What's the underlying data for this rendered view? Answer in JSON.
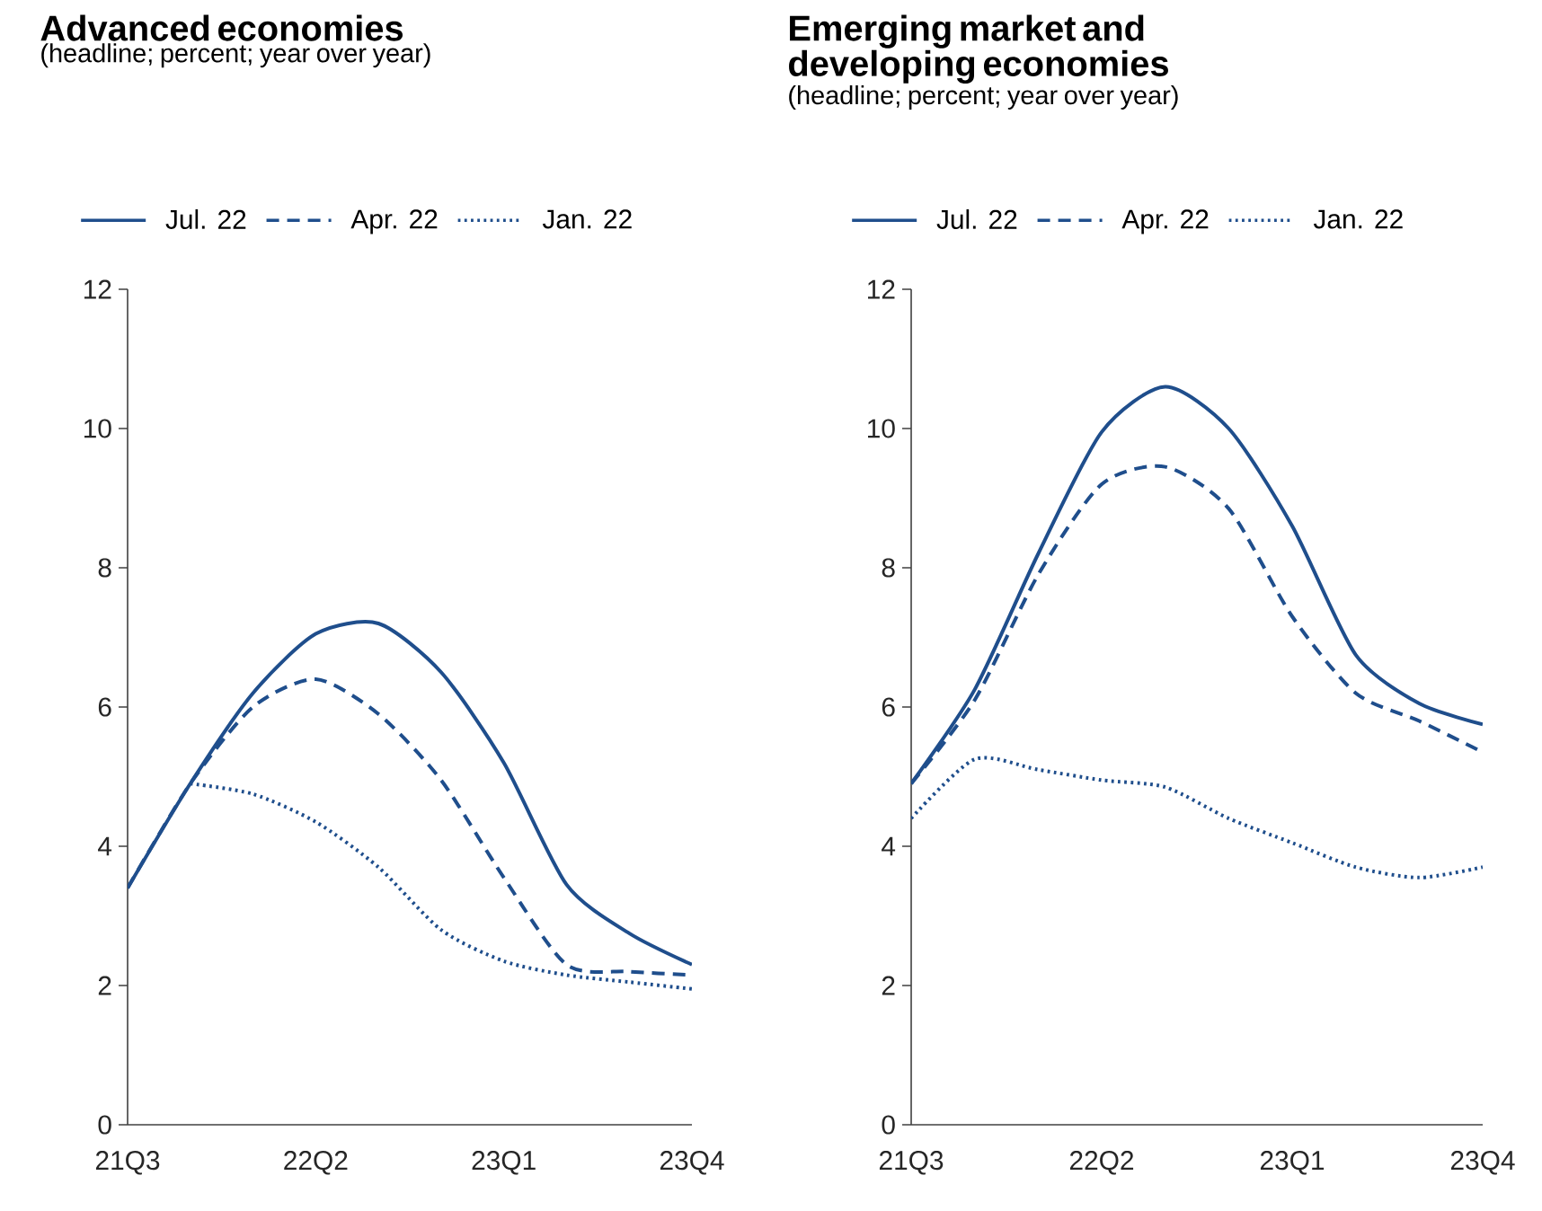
{
  "chart_data": [
    {
      "type": "line",
      "title": "Advanced economies",
      "subtitle": "(headline; percent; year over year)",
      "categories": [
        "21Q3",
        null,
        null,
        "22Q2",
        null,
        null,
        "23Q1",
        null,
        null,
        "23Q4"
      ],
      "ylim": [
        0,
        12
      ],
      "yticks": [
        0,
        2,
        4,
        6,
        8,
        10,
        12
      ],
      "legend": "top",
      "series": [
        {
          "name": "Jul. 22",
          "color": "#1f4e8c",
          "line_style": "solid",
          "values": [
            3.4,
            4.9,
            6.2,
            7.05,
            7.2,
            6.5,
            5.2,
            3.45,
            2.75,
            2.3
          ]
        },
        {
          "name": "Apr. 22",
          "color": "#1f4e8c",
          "line_style": "dashed",
          "values": [
            3.4,
            4.9,
            6.0,
            6.4,
            5.9,
            4.95,
            3.55,
            2.3,
            2.2,
            2.15
          ]
        },
        {
          "name": "Jan. 22",
          "color": "#1f4e8c",
          "line_style": "dotted",
          "values": [
            null,
            4.9,
            4.75,
            4.35,
            3.7,
            2.8,
            2.35,
            2.15,
            2.05,
            1.95
          ]
        }
      ]
    },
    {
      "type": "line",
      "title": "Emerging market and developing economies",
      "subtitle": "(headline; percent; year over year)",
      "categories": [
        "21Q3",
        null,
        null,
        "22Q2",
        null,
        null,
        "23Q1",
        null,
        null,
        "23Q4"
      ],
      "ylim": [
        0,
        12
      ],
      "yticks": [
        0,
        2,
        4,
        6,
        8,
        10,
        12
      ],
      "legend": "top",
      "series": [
        {
          "name": "Jul. 22",
          "color": "#1f4e8c",
          "line_style": "solid",
          "values": [
            4.9,
            6.25,
            8.2,
            9.95,
            10.6,
            10.0,
            8.6,
            6.75,
            6.05,
            5.75
          ]
        },
        {
          "name": "Apr. 22",
          "color": "#1f4e8c",
          "line_style": "dashed",
          "values": [
            4.9,
            6.1,
            7.9,
            9.2,
            9.45,
            8.85,
            7.3,
            6.2,
            5.8,
            5.35
          ]
        },
        {
          "name": "Jan. 22",
          "color": "#1f4e8c",
          "line_style": "dotted",
          "values": [
            4.4,
            5.25,
            5.1,
            4.95,
            4.85,
            4.4,
            4.05,
            3.7,
            3.55,
            3.7
          ]
        }
      ]
    }
  ]
}
